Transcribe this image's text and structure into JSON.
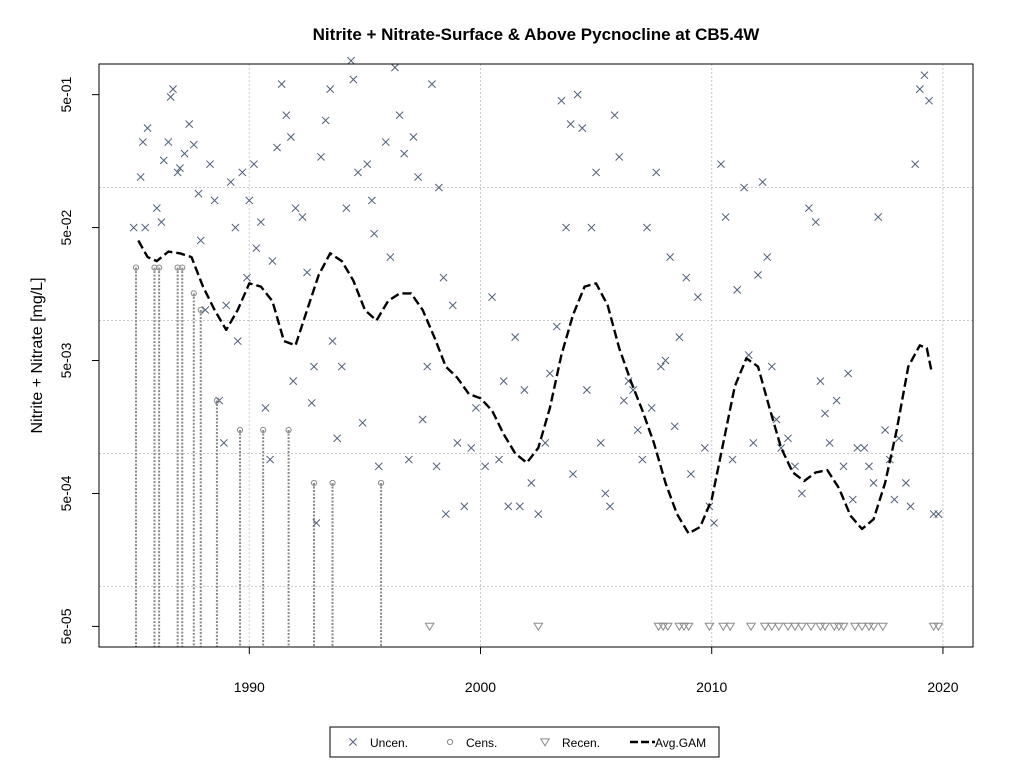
{
  "chart_data": {
    "type": "scatter",
    "title": "Nitrite + Nitrate-Surface & Above Pycnocline at CB5.4W",
    "xlabel": "",
    "ylabel": "Nitrite + Nitrate [mg/L]",
    "y_scale": "log10",
    "xlim": [
      1983.5,
      2021.3
    ],
    "ylim": [
      3.5e-05,
      0.85
    ],
    "x_ticks": [
      1990,
      2000,
      2010,
      2020
    ],
    "x_tick_labels": [
      "1990",
      "2000",
      "2010",
      "2020"
    ],
    "y_ticks": [
      5e-05,
      0.0005,
      0.005,
      0.05,
      0.5
    ],
    "y_tick_labels": [
      "5e-05",
      "5e-04",
      "5e-03",
      "5e-02",
      "5e-01"
    ],
    "grid": true,
    "legend_position": "bottom-center",
    "colors": {
      "uncensored": "#4f5f78",
      "censored": "#8a8a8a",
      "recensored": "#8a8a8a",
      "gam": "#000000",
      "grid": "#c8c8c8"
    },
    "series": [
      {
        "name": "Uncen.",
        "marker": "x",
        "points": [
          [
            1985.0,
            0.05
          ],
          [
            1985.5,
            0.05
          ],
          [
            1985.3,
            0.12
          ],
          [
            1985.4,
            0.22
          ],
          [
            1985.6,
            0.28
          ],
          [
            1986.0,
            0.07
          ],
          [
            1986.2,
            0.055
          ],
          [
            1986.3,
            0.16
          ],
          [
            1986.5,
            0.22
          ],
          [
            1986.6,
            0.48
          ],
          [
            1986.7,
            0.55
          ],
          [
            1986.9,
            0.13
          ],
          [
            1987.0,
            0.14
          ],
          [
            1987.2,
            0.18
          ],
          [
            1987.4,
            0.3
          ],
          [
            1987.6,
            0.21
          ],
          [
            1987.8,
            0.09
          ],
          [
            1987.9,
            0.04
          ],
          [
            1988.1,
            0.012
          ],
          [
            1988.3,
            0.15
          ],
          [
            1988.5,
            0.08
          ],
          [
            1988.7,
            0.0025
          ],
          [
            1988.9,
            0.0012
          ],
          [
            1989.0,
            0.013
          ],
          [
            1989.2,
            0.11
          ],
          [
            1989.4,
            0.05
          ],
          [
            1989.5,
            0.007
          ],
          [
            1989.7,
            0.13
          ],
          [
            1989.9,
            0.021
          ],
          [
            1990.0,
            0.08
          ],
          [
            1990.2,
            0.15
          ],
          [
            1990.3,
            0.035
          ],
          [
            1990.5,
            0.055
          ],
          [
            1990.7,
            0.0022
          ],
          [
            1990.9,
            0.0009
          ],
          [
            1991.0,
            0.028
          ],
          [
            1991.2,
            0.2
          ],
          [
            1991.4,
            0.6
          ],
          [
            1991.6,
            0.35
          ],
          [
            1991.8,
            0.24
          ],
          [
            1991.9,
            0.0035
          ],
          [
            1992.0,
            0.07
          ],
          [
            1992.3,
            0.06
          ],
          [
            1992.5,
            0.023
          ],
          [
            1992.7,
            0.0024
          ],
          [
            1992.8,
            0.0045
          ],
          [
            1992.9,
            0.0003
          ],
          [
            1993.1,
            0.17
          ],
          [
            1993.3,
            0.32
          ],
          [
            1993.5,
            0.55
          ],
          [
            1993.6,
            0.007
          ],
          [
            1993.8,
            0.0013
          ],
          [
            1994.0,
            0.0045
          ],
          [
            1994.2,
            0.07
          ],
          [
            1994.4,
            0.9
          ],
          [
            1994.5,
            0.65
          ],
          [
            1994.7,
            0.13
          ],
          [
            1994.9,
            0.0017
          ],
          [
            1995.1,
            0.15
          ],
          [
            1995.3,
            0.08
          ],
          [
            1995.4,
            0.045
          ],
          [
            1995.6,
            0.0008
          ],
          [
            1995.9,
            0.22
          ],
          [
            1996.1,
            0.03
          ],
          [
            1996.3,
            0.8
          ],
          [
            1996.5,
            0.35
          ],
          [
            1996.7,
            0.18
          ],
          [
            1996.9,
            0.0009
          ],
          [
            1997.1,
            0.24
          ],
          [
            1997.3,
            0.12
          ],
          [
            1997.5,
            0.0018
          ],
          [
            1997.7,
            0.0045
          ],
          [
            1997.9,
            0.6
          ],
          [
            1998.1,
            0.0008
          ],
          [
            1998.2,
            0.1
          ],
          [
            1998.4,
            0.021
          ],
          [
            1998.5,
            0.00035
          ],
          [
            1998.8,
            0.013
          ],
          [
            1999.0,
            0.0012
          ],
          [
            1999.3,
            0.0004
          ],
          [
            1999.6,
            0.0011
          ],
          [
            1999.8,
            0.0022
          ],
          [
            2000.2,
            0.0008
          ],
          [
            2000.5,
            0.015
          ],
          [
            2000.8,
            0.0009
          ],
          [
            2001.0,
            0.0035
          ],
          [
            2001.2,
            0.0004
          ],
          [
            2001.5,
            0.0075
          ],
          [
            2001.7,
            0.0004
          ],
          [
            2001.9,
            0.003
          ],
          [
            2002.2,
            0.0006
          ],
          [
            2002.5,
            0.00035
          ],
          [
            2002.8,
            0.0012
          ],
          [
            2003.0,
            0.004
          ],
          [
            2003.3,
            0.009
          ],
          [
            2003.5,
            0.45
          ],
          [
            2003.7,
            0.05
          ],
          [
            2003.9,
            0.3
          ],
          [
            2004.0,
            0.0007
          ],
          [
            2004.2,
            0.5
          ],
          [
            2004.4,
            0.28
          ],
          [
            2004.6,
            0.003
          ],
          [
            2004.8,
            0.05
          ],
          [
            2005.0,
            0.13
          ],
          [
            2005.2,
            0.0012
          ],
          [
            2005.4,
            0.0005
          ],
          [
            2005.6,
            0.0004
          ],
          [
            2005.8,
            0.35
          ],
          [
            2006.0,
            0.17
          ],
          [
            2006.2,
            0.0025
          ],
          [
            2006.4,
            0.0035
          ],
          [
            2006.6,
            0.003
          ],
          [
            2006.8,
            0.0015
          ],
          [
            2007.0,
            0.0009
          ],
          [
            2007.2,
            0.05
          ],
          [
            2007.4,
            0.0022
          ],
          [
            2007.6,
            0.13
          ],
          [
            2007.8,
            0.0045
          ],
          [
            2008.0,
            0.005
          ],
          [
            2008.2,
            0.03
          ],
          [
            2008.4,
            0.0016
          ],
          [
            2008.6,
            0.0075
          ],
          [
            2008.9,
            0.021
          ],
          [
            2009.1,
            0.0007
          ],
          [
            2009.4,
            0.015
          ],
          [
            2009.7,
            0.0011
          ],
          [
            2009.9,
            0.0004
          ],
          [
            2010.1,
            0.0003
          ],
          [
            2010.4,
            0.15
          ],
          [
            2010.6,
            0.06
          ],
          [
            2010.9,
            0.0009
          ],
          [
            2011.1,
            0.017
          ],
          [
            2011.4,
            0.1
          ],
          [
            2011.6,
            0.0055
          ],
          [
            2011.8,
            0.0012
          ],
          [
            2012.0,
            0.022
          ],
          [
            2012.2,
            0.11
          ],
          [
            2012.4,
            0.03
          ],
          [
            2012.6,
            0.0045
          ],
          [
            2012.8,
            0.0018
          ],
          [
            2013.0,
            0.0011
          ],
          [
            2013.3,
            0.0013
          ],
          [
            2013.6,
            0.0008
          ],
          [
            2013.9,
            0.0005
          ],
          [
            2014.2,
            0.07
          ],
          [
            2014.5,
            0.055
          ],
          [
            2014.7,
            0.0035
          ],
          [
            2014.9,
            0.002
          ],
          [
            2015.1,
            0.0012
          ],
          [
            2015.4,
            0.0025
          ],
          [
            2015.7,
            0.0008
          ],
          [
            2015.9,
            0.004
          ],
          [
            2016.1,
            0.00045
          ],
          [
            2016.3,
            0.0011
          ],
          [
            2016.6,
            0.0011
          ],
          [
            2016.8,
            0.0008
          ],
          [
            2017.0,
            0.0006
          ],
          [
            2017.2,
            0.06
          ],
          [
            2017.5,
            0.0015
          ],
          [
            2017.7,
            0.0009
          ],
          [
            2017.9,
            0.00045
          ],
          [
            2018.1,
            0.0013
          ],
          [
            2018.4,
            0.0006
          ],
          [
            2018.6,
            0.0004
          ],
          [
            2018.8,
            0.15
          ],
          [
            2019.0,
            0.55
          ],
          [
            2019.2,
            0.7
          ],
          [
            2019.4,
            0.45
          ],
          [
            2019.6,
            0.00035
          ],
          [
            2019.8,
            0.00035
          ]
        ]
      },
      {
        "name": "Cens.",
        "marker": "circle",
        "points": [
          [
            1985.1,
            0.025
          ],
          [
            1985.9,
            0.025
          ],
          [
            1986.1,
            0.025
          ],
          [
            1986.9,
            0.025
          ],
          [
            1987.1,
            0.025
          ],
          [
            1987.6,
            0.016
          ],
          [
            1987.9,
            0.012
          ],
          [
            1988.6,
            0.0025
          ],
          [
            1989.6,
            0.0015
          ],
          [
            1990.6,
            0.0015
          ],
          [
            1991.7,
            0.0015
          ],
          [
            1992.8,
            0.0006
          ],
          [
            1993.6,
            0.0006
          ],
          [
            1995.7,
            0.0006
          ]
        ]
      },
      {
        "name": "Recen.",
        "marker": "triangle-down",
        "points": [
          [
            1997.8,
            5e-05
          ],
          [
            2002.5,
            5e-05
          ],
          [
            2007.7,
            5e-05
          ],
          [
            2007.9,
            5e-05
          ],
          [
            2008.1,
            5e-05
          ],
          [
            2008.6,
            5e-05
          ],
          [
            2008.8,
            5e-05
          ],
          [
            2009.0,
            5e-05
          ],
          [
            2009.9,
            5e-05
          ],
          [
            2010.5,
            5e-05
          ],
          [
            2010.8,
            5e-05
          ],
          [
            2011.7,
            5e-05
          ],
          [
            2012.3,
            5e-05
          ],
          [
            2012.6,
            5e-05
          ],
          [
            2012.9,
            5e-05
          ],
          [
            2013.3,
            5e-05
          ],
          [
            2013.6,
            5e-05
          ],
          [
            2013.9,
            5e-05
          ],
          [
            2014.3,
            5e-05
          ],
          [
            2014.7,
            5e-05
          ],
          [
            2014.9,
            5e-05
          ],
          [
            2015.3,
            5e-05
          ],
          [
            2015.5,
            5e-05
          ],
          [
            2015.7,
            5e-05
          ],
          [
            2016.2,
            5e-05
          ],
          [
            2016.5,
            5e-05
          ],
          [
            2016.8,
            5e-05
          ],
          [
            2017.0,
            5e-05
          ],
          [
            2017.4,
            5e-05
          ],
          [
            2019.6,
            5e-05
          ],
          [
            2019.8,
            5e-05
          ]
        ]
      },
      {
        "name": "Avg.GAM",
        "line_style": "dashed",
        "points": [
          [
            1985.2,
            0.04
          ],
          [
            1985.6,
            0.03
          ],
          [
            1986.0,
            0.028
          ],
          [
            1986.5,
            0.033
          ],
          [
            1987.0,
            0.032
          ],
          [
            1987.5,
            0.03
          ],
          [
            1988.0,
            0.018
          ],
          [
            1988.5,
            0.012
          ],
          [
            1989.0,
            0.0085
          ],
          [
            1989.5,
            0.012
          ],
          [
            1990.0,
            0.019
          ],
          [
            1990.5,
            0.018
          ],
          [
            1991.0,
            0.014
          ],
          [
            1991.5,
            0.007
          ],
          [
            1992.0,
            0.0065
          ],
          [
            1992.5,
            0.012
          ],
          [
            1993.0,
            0.022
          ],
          [
            1993.5,
            0.032
          ],
          [
            1994.0,
            0.028
          ],
          [
            1994.5,
            0.02
          ],
          [
            1995.0,
            0.012
          ],
          [
            1995.5,
            0.01
          ],
          [
            1996.0,
            0.014
          ],
          [
            1996.5,
            0.016
          ],
          [
            1997.0,
            0.016
          ],
          [
            1997.5,
            0.012
          ],
          [
            1998.0,
            0.0075
          ],
          [
            1998.5,
            0.0045
          ],
          [
            1999.0,
            0.0037
          ],
          [
            1999.5,
            0.0028
          ],
          [
            2000.0,
            0.0026
          ],
          [
            2000.5,
            0.0021
          ],
          [
            2001.0,
            0.0014
          ],
          [
            2001.5,
            0.001
          ],
          [
            2002.0,
            0.00085
          ],
          [
            2002.5,
            0.0011
          ],
          [
            2003.0,
            0.0022
          ],
          [
            2003.5,
            0.0055
          ],
          [
            2004.0,
            0.011
          ],
          [
            2004.5,
            0.018
          ],
          [
            2005.0,
            0.019
          ],
          [
            2005.5,
            0.013
          ],
          [
            2006.0,
            0.0062
          ],
          [
            2006.5,
            0.0035
          ],
          [
            2007.0,
            0.0021
          ],
          [
            2007.5,
            0.0012
          ],
          [
            2008.0,
            0.0006
          ],
          [
            2008.5,
            0.00035
          ],
          [
            2009.0,
            0.00025
          ],
          [
            2009.5,
            0.00028
          ],
          [
            2010.0,
            0.00045
          ],
          [
            2010.5,
            0.0012
          ],
          [
            2011.0,
            0.0032
          ],
          [
            2011.5,
            0.0052
          ],
          [
            2012.0,
            0.0045
          ],
          [
            2012.5,
            0.0022
          ],
          [
            2013.0,
            0.0011
          ],
          [
            2013.5,
            0.00072
          ],
          [
            2014.0,
            0.00062
          ],
          [
            2014.5,
            0.00072
          ],
          [
            2015.0,
            0.00075
          ],
          [
            2015.5,
            0.00055
          ],
          [
            2016.0,
            0.00034
          ],
          [
            2016.5,
            0.00027
          ],
          [
            2017.0,
            0.00032
          ],
          [
            2017.5,
            0.0006
          ],
          [
            2018.0,
            0.0015
          ],
          [
            2018.5,
            0.0045
          ],
          [
            2019.0,
            0.0065
          ],
          [
            2019.3,
            0.0062
          ],
          [
            2019.5,
            0.0042
          ]
        ]
      }
    ]
  }
}
